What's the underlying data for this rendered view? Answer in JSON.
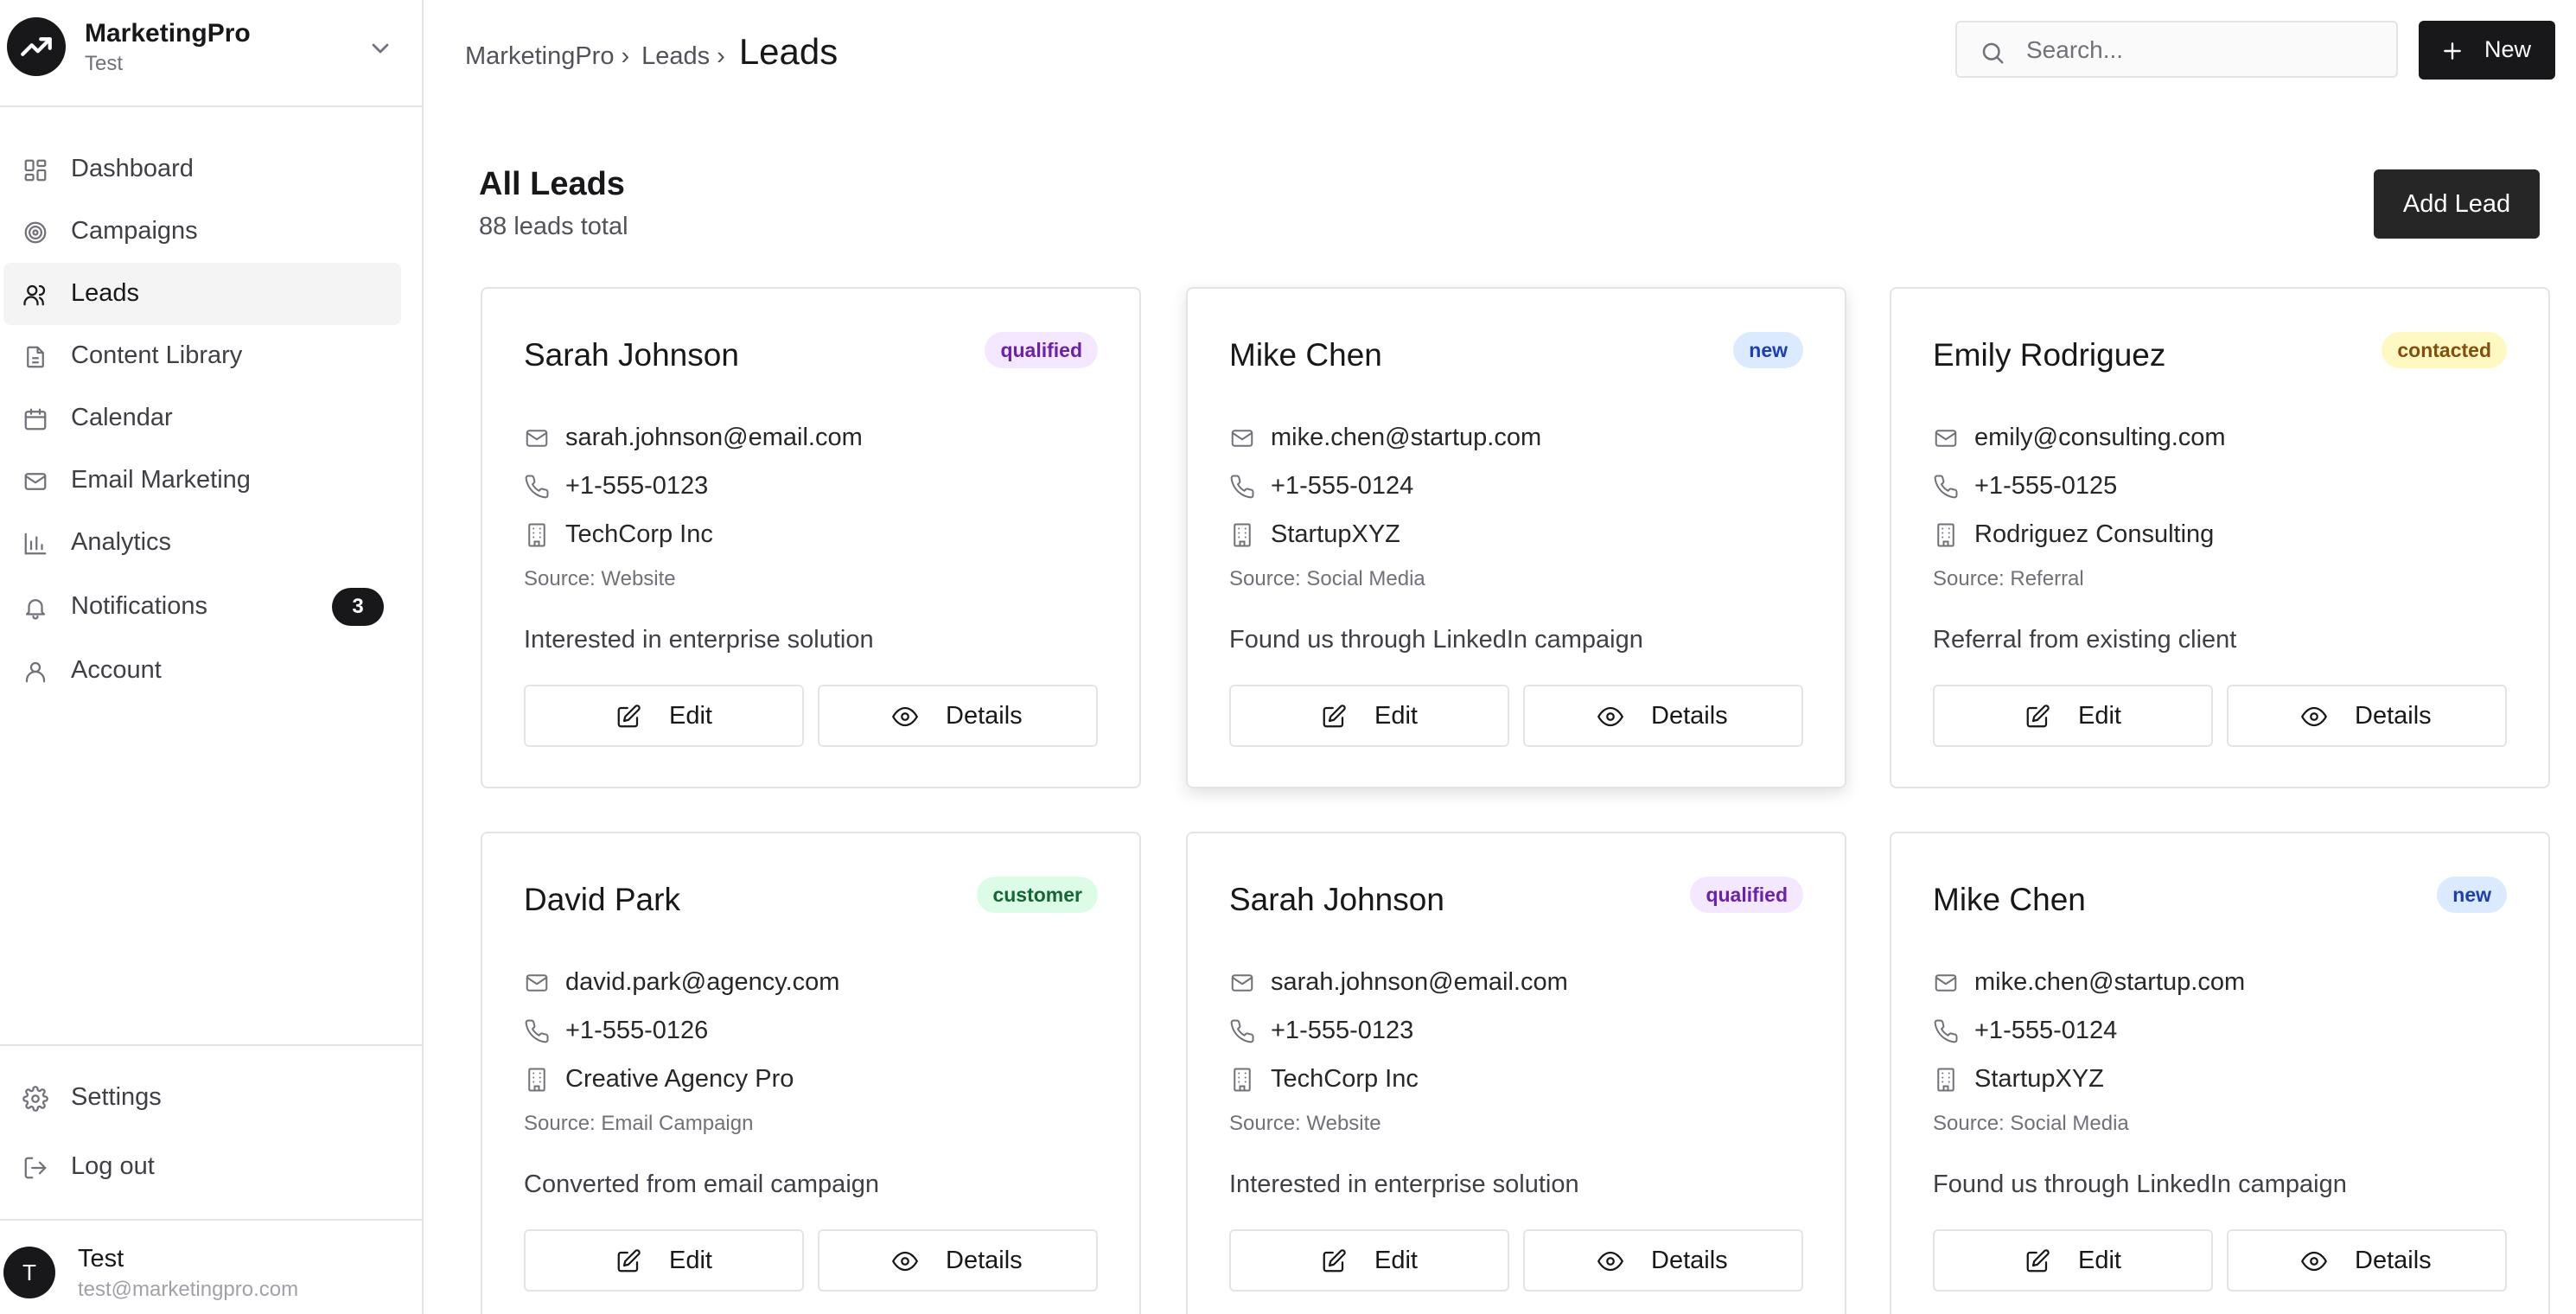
{
  "app": {
    "name": "MarketingPro",
    "workspace": "Test"
  },
  "sidebar": {
    "items": [
      {
        "label": "Dashboard",
        "icon": "grid-icon"
      },
      {
        "label": "Campaigns",
        "icon": "target-icon"
      },
      {
        "label": "Leads",
        "icon": "users-icon",
        "active": true
      },
      {
        "label": "Content Library",
        "icon": "file-icon"
      },
      {
        "label": "Calendar",
        "icon": "calendar-icon"
      },
      {
        "label": "Email Marketing",
        "icon": "mail-icon"
      },
      {
        "label": "Analytics",
        "icon": "bar-chart-icon"
      },
      {
        "label": "Notifications",
        "icon": "bell-icon",
        "badge": "3"
      },
      {
        "label": "Account",
        "icon": "user-icon"
      }
    ],
    "footer": {
      "settings": "Settings",
      "logout": "Log out"
    },
    "user": {
      "initial": "T",
      "name": "Test",
      "email": "test@marketingpro.com"
    }
  },
  "header": {
    "breadcrumb": [
      "MarketingPro",
      "Leads"
    ],
    "current": "Leads",
    "search_placeholder": "Search...",
    "new_label": "New"
  },
  "main": {
    "title": "All Leads",
    "subtitle": "88 leads total",
    "add_label": "Add Lead",
    "edit_label": "Edit",
    "details_label": "Details",
    "leads": [
      {
        "name": "Sarah Johnson",
        "status": "qualified",
        "email": "sarah.johnson@email.com",
        "phone": "+1-555-0123",
        "company": "TechCorp Inc",
        "source": "Source: Website",
        "note": "Interested in enterprise solution"
      },
      {
        "name": "Mike Chen",
        "status": "new",
        "email": "mike.chen@startup.com",
        "phone": "+1-555-0124",
        "company": "StartupXYZ",
        "source": "Source: Social Media",
        "note": "Found us through LinkedIn campaign"
      },
      {
        "name": "Emily Rodriguez",
        "status": "contacted",
        "email": "emily@consulting.com",
        "phone": "+1-555-0125",
        "company": "Rodriguez Consulting",
        "source": "Source: Referral",
        "note": "Referral from existing client"
      },
      {
        "name": "David Park",
        "status": "customer",
        "email": "david.park@agency.com",
        "phone": "+1-555-0126",
        "company": "Creative Agency Pro",
        "source": "Source: Email Campaign",
        "note": "Converted from email campaign"
      },
      {
        "name": "Sarah Johnson",
        "status": "qualified",
        "email": "sarah.johnson@email.com",
        "phone": "+1-555-0123",
        "company": "TechCorp Inc",
        "source": "Source: Website",
        "note": "Interested in enterprise solution"
      },
      {
        "name": "Mike Chen",
        "status": "new",
        "email": "mike.chen@startup.com",
        "phone": "+1-555-0124",
        "company": "StartupXYZ",
        "source": "Source: Social Media",
        "note": "Found us through LinkedIn campaign"
      }
    ]
  },
  "colors": {
    "primary": "#18181b",
    "border": "#e4e4e7",
    "qualified": "#6b21a8",
    "new": "#1e40af",
    "contacted": "#854d0e",
    "customer": "#166534"
  }
}
